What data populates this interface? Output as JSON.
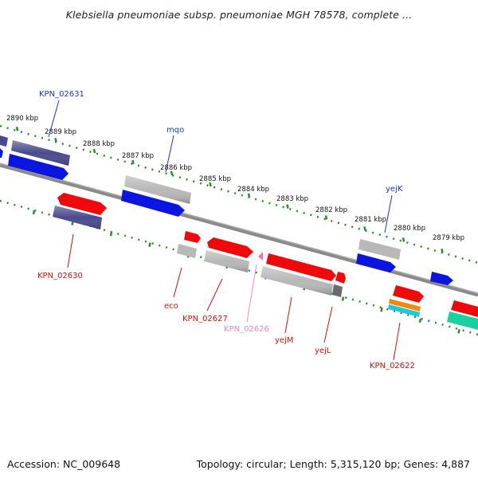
{
  "title": "Klebsiella pneumoniae subsp. pneumoniae MGH 78578, complete ...",
  "footer": {
    "accession": "Accession: NC_009648",
    "summary": "Topology: circular; Length: 5,315,120 bp; Genes: 4,887"
  },
  "scale_labels": [
    "2890 kbp",
    "2889 kbp",
    "2888 kbp",
    "2887 kbp",
    "2886 kbp",
    "2885 kbp",
    "2884 kbp",
    "2883 kbp",
    "2882 kbp",
    "2881 kbp",
    "2880 kbp",
    "2879 kbp"
  ],
  "gene_labels": {
    "kpn_02631": "KPN_02631",
    "mqo": "mqo",
    "yejk": "yejK",
    "kpn_02630": "KPN_02630",
    "eco": "eco",
    "kpn_02627": "KPN_02627",
    "kpn_02626": "KPN_02626",
    "yejm": "yejM",
    "yejl": "yejL",
    "kpn_02622": "KPN_02622"
  },
  "colors": {
    "forward_ruler": "#2e8b2e",
    "backbone": "#8a8a8a",
    "gene_blue": "#0a16e0",
    "gene_navy": "#4a4a8e",
    "gene_red": "#ee0a0a",
    "gene_gray": "#b8b8b8",
    "gene_dark": "#6a6a6a",
    "gene_orange": "#f08a10",
    "gene_cyan": "#20c8d8",
    "gene_teal": "#18d0a0",
    "gene_pink": "#ff6fb0",
    "label_blue": "#2233bb",
    "label_red": "#cc1111",
    "label_pink": "#ee88bb"
  }
}
